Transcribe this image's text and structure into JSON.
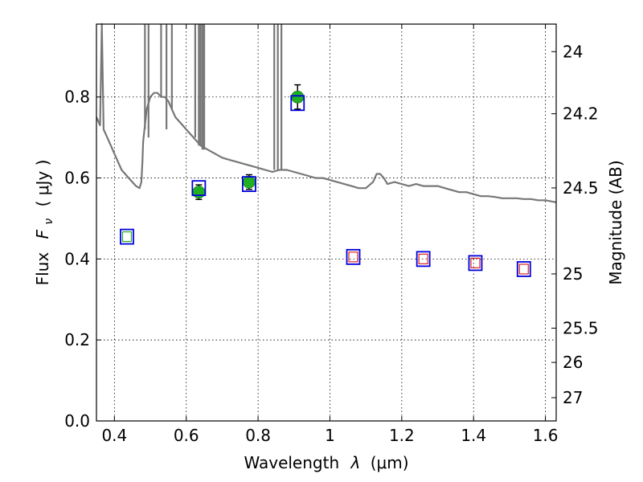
{
  "chart_data": {
    "type": "scatter",
    "xlabel_text": "Wavelength",
    "xlabel_symbol": "λ",
    "xlabel_unit": "(μm)",
    "ylabel_text": "Flux",
    "ylabel_symbol": "F",
    "ylabel_sub": "ν",
    "ylabel_unit": "( μJy )",
    "y2label": "Magnitude (AB)",
    "xlim": [
      0.35,
      1.63
    ],
    "ylim": [
      0.0,
      0.98
    ],
    "grid": true,
    "x_ticks": [
      {
        "value": 0.4,
        "label": "0.4"
      },
      {
        "value": 0.6,
        "label": "0.6"
      },
      {
        "value": 0.8,
        "label": "0.8"
      },
      {
        "value": 1.0,
        "label": "1"
      },
      {
        "value": 1.2,
        "label": "1.2"
      },
      {
        "value": 1.4,
        "label": "1.4"
      },
      {
        "value": 1.6,
        "label": "1.6"
      }
    ],
    "y_ticks": [
      {
        "value": 0.0,
        "label": "0.0"
      },
      {
        "value": 0.2,
        "label": "0.2"
      },
      {
        "value": 0.4,
        "label": "0.4"
      },
      {
        "value": 0.6,
        "label": "0.6"
      },
      {
        "value": 0.8,
        "label": "0.8"
      }
    ],
    "mag_ticks": [
      {
        "value": 24,
        "label": "24"
      },
      {
        "value": 24.2,
        "label": "24.2"
      },
      {
        "value": 24.5,
        "label": "24.5"
      },
      {
        "value": 25,
        "label": "25"
      },
      {
        "value": 25.5,
        "label": "25.5"
      },
      {
        "value": 26,
        "label": "26"
      },
      {
        "value": 27,
        "label": "27"
      }
    ],
    "series": [
      {
        "kind": "spectrum",
        "color": "#777777",
        "x": [
          0.35,
          0.36,
          0.365,
          0.37,
          0.38,
          0.39,
          0.4,
          0.42,
          0.44,
          0.46,
          0.47,
          0.475,
          0.478,
          0.48,
          0.485,
          0.49,
          0.5,
          0.51,
          0.52,
          0.53,
          0.54,
          0.55,
          0.56,
          0.57,
          0.58,
          0.59,
          0.6,
          0.62,
          0.64,
          0.66,
          0.68,
          0.7,
          0.72,
          0.74,
          0.76,
          0.78,
          0.8,
          0.82,
          0.84,
          0.86,
          0.88,
          0.9,
          0.92,
          0.94,
          0.96,
          0.98,
          1.0,
          1.02,
          1.04,
          1.06,
          1.08,
          1.1,
          1.12,
          1.13,
          1.14,
          1.15,
          1.16,
          1.18,
          1.2,
          1.22,
          1.24,
          1.26,
          1.28,
          1.3,
          1.32,
          1.34,
          1.36,
          1.38,
          1.4,
          1.42,
          1.44,
          1.46,
          1.48,
          1.5,
          1.52,
          1.54,
          1.56,
          1.58,
          1.6,
          1.63
        ],
        "y": [
          0.75,
          0.73,
          0.98,
          0.72,
          0.7,
          0.68,
          0.66,
          0.62,
          0.6,
          0.58,
          0.575,
          0.59,
          0.64,
          0.69,
          0.73,
          0.77,
          0.8,
          0.81,
          0.81,
          0.8,
          0.8,
          0.79,
          0.77,
          0.75,
          0.74,
          0.73,
          0.72,
          0.7,
          0.68,
          0.67,
          0.66,
          0.65,
          0.645,
          0.64,
          0.635,
          0.63,
          0.625,
          0.62,
          0.615,
          0.62,
          0.62,
          0.615,
          0.61,
          0.605,
          0.6,
          0.6,
          0.595,
          0.59,
          0.585,
          0.58,
          0.575,
          0.575,
          0.59,
          0.61,
          0.61,
          0.6,
          0.585,
          0.59,
          0.585,
          0.58,
          0.585,
          0.58,
          0.58,
          0.58,
          0.575,
          0.57,
          0.565,
          0.565,
          0.56,
          0.555,
          0.555,
          0.553,
          0.55,
          0.55,
          0.55,
          0.548,
          0.548,
          0.545,
          0.545,
          0.54
        ]
      },
      {
        "kind": "spectrum_spikes",
        "color": "#777777",
        "x": [
          0.485,
          0.495,
          0.53,
          0.545,
          0.56,
          0.625,
          0.635,
          0.64,
          0.645,
          0.65,
          0.845,
          0.855,
          0.865
        ],
        "y_base": [
          0.72,
          0.7,
          0.8,
          0.72,
          0.77,
          0.7,
          0.68,
          0.68,
          0.67,
          0.67,
          0.62,
          0.62,
          0.62
        ]
      },
      {
        "kind": "observed",
        "color": "#22b022",
        "x": [
          0.635,
          0.775,
          0.91
        ],
        "y": [
          0.565,
          0.59,
          0.8
        ],
        "yerr": [
          0.018,
          0.018,
          0.03
        ]
      },
      {
        "kind": "model_squares",
        "color": "#0000dd",
        "x": [
          0.435,
          0.635,
          0.775,
          0.91,
          1.065,
          1.26,
          1.405,
          1.54
        ],
        "y": [
          0.455,
          0.575,
          0.585,
          0.785,
          0.405,
          0.4,
          0.39,
          0.375
        ]
      },
      {
        "kind": "inner_squares",
        "color": "#22b022",
        "x": [
          0.435
        ],
        "y": [
          0.455
        ]
      },
      {
        "kind": "inner_squares",
        "color": "#dd2222",
        "x": [
          1.065,
          1.26,
          1.405,
          1.54
        ],
        "y": [
          0.405,
          0.4,
          0.39,
          0.375
        ]
      }
    ]
  }
}
